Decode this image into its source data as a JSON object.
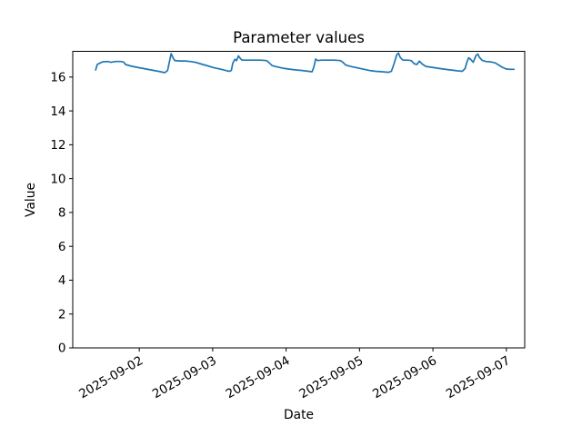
{
  "chart_data": {
    "type": "line",
    "title": "Parameter values",
    "xlabel": "Date",
    "ylabel": "Value",
    "grid": false,
    "legend": null,
    "line_color": "#1f77b4",
    "line_width": 1.7,
    "spine_color": "#000000",
    "text_color": "#000000",
    "background": "#ffffff",
    "xlim": [
      "2025-09-01T02:15",
      "2025-09-07T06:00"
    ],
    "ylim": [
      0,
      17.52
    ],
    "yticks": [
      0,
      2,
      4,
      6,
      8,
      10,
      12,
      14,
      16
    ],
    "xticks": [
      "2025-09-02",
      "2025-09-03",
      "2025-09-04",
      "2025-09-05",
      "2025-09-06",
      "2025-09-07"
    ],
    "xtick_rotation_deg": 30,
    "series": [
      {
        "name": "Parameter values",
        "x": [
          "2025-09-01T09:45",
          "2025-09-01T10:15",
          "2025-09-01T11:15",
          "2025-09-01T12:05",
          "2025-09-01T13:35",
          "2025-09-01T14:45",
          "2025-09-01T16:15",
          "2025-09-01T18:00",
          "2025-09-01T19:00",
          "2025-09-01T19:30",
          "2025-09-01T21:00",
          "2025-09-01T23:05",
          "2025-09-02T01:30",
          "2025-09-02T03:50",
          "2025-09-02T06:15",
          "2025-09-02T08:20",
          "2025-09-02T09:15",
          "2025-09-02T09:50",
          "2025-09-02T10:25",
          "2025-09-02T11:00",
          "2025-09-02T11:35",
          "2025-09-02T13:05",
          "2025-09-02T14:55",
          "2025-09-02T16:40",
          "2025-09-02T18:25",
          "2025-09-02T20:15",
          "2025-09-02T22:20",
          "2025-09-03T00:25",
          "2025-09-03T02:30",
          "2025-09-03T04:15",
          "2025-09-03T05:25",
          "2025-09-03T06:05",
          "2025-09-03T06:35",
          "2025-09-03T07:15",
          "2025-09-03T07:50",
          "2025-09-03T08:25",
          "2025-09-03T09:00",
          "2025-09-03T09:35",
          "2025-09-03T11:25",
          "2025-09-03T13:30",
          "2025-09-03T15:35",
          "2025-09-03T17:40",
          "2025-09-03T18:30",
          "2025-09-03T19:25",
          "2025-09-03T20:55",
          "2025-09-03T23:00",
          "2025-09-04T01:05",
          "2025-09-04T03:10",
          "2025-09-04T05:15",
          "2025-09-04T07:20",
          "2025-09-04T08:30",
          "2025-09-04T09:05",
          "2025-09-04T09:40",
          "2025-09-04T10:20",
          "2025-09-04T11:30",
          "2025-09-04T13:35",
          "2025-09-04T15:40",
          "2025-09-04T17:45",
          "2025-09-04T18:35",
          "2025-09-04T19:30",
          "2025-09-04T21:00",
          "2025-09-04T23:05",
          "2025-09-05T01:10",
          "2025-09-05T03:15",
          "2025-09-05T05:20",
          "2025-09-05T07:25",
          "2025-09-05T09:30",
          "2025-09-05T10:25",
          "2025-09-05T11:15",
          "2025-09-05T12:10",
          "2025-09-05T12:45",
          "2025-09-05T13:20",
          "2025-09-05T14:15",
          "2025-09-05T15:45",
          "2025-09-05T16:55",
          "2025-09-05T17:50",
          "2025-09-05T18:45",
          "2025-09-05T19:35",
          "2025-09-05T20:30",
          "2025-09-05T21:40",
          "2025-09-05T23:30",
          "2025-09-06T01:35",
          "2025-09-06T03:40",
          "2025-09-06T05:45",
          "2025-09-06T07:50",
          "2025-09-06T09:35",
          "2025-09-06T10:30",
          "2025-09-06T11:05",
          "2025-09-06T11:40",
          "2025-09-06T12:15",
          "2025-09-06T13:10",
          "2025-09-06T14:05",
          "2025-09-06T14:40",
          "2025-09-06T15:15",
          "2025-09-06T16:10",
          "2025-09-06T17:20",
          "2025-09-06T18:50",
          "2025-09-06T20:20",
          "2025-09-06T21:30",
          "2025-09-06T22:40",
          "2025-09-06T23:55",
          "2025-09-07T01:05",
          "2025-09-07T02:30"
        ],
        "y": [
          16.42,
          16.74,
          16.84,
          16.9,
          16.92,
          16.87,
          16.92,
          16.92,
          16.87,
          16.74,
          16.66,
          16.58,
          16.5,
          16.42,
          16.34,
          16.26,
          16.39,
          16.87,
          17.38,
          17.15,
          16.98,
          16.95,
          16.95,
          16.92,
          16.87,
          16.77,
          16.66,
          16.55,
          16.47,
          16.39,
          16.34,
          16.39,
          16.82,
          17.05,
          16.97,
          17.25,
          17.1,
          17.0,
          17.0,
          17.0,
          17.0,
          16.97,
          16.84,
          16.68,
          16.6,
          16.52,
          16.47,
          16.42,
          16.39,
          16.34,
          16.31,
          16.6,
          17.06,
          16.97,
          17.0,
          17.0,
          17.0,
          16.97,
          16.87,
          16.71,
          16.63,
          16.55,
          16.47,
          16.39,
          16.34,
          16.31,
          16.28,
          16.34,
          16.77,
          17.32,
          17.42,
          17.15,
          17.0,
          17.0,
          16.97,
          16.79,
          16.74,
          16.94,
          16.77,
          16.63,
          16.58,
          16.52,
          16.47,
          16.42,
          16.37,
          16.34,
          16.5,
          16.87,
          17.14,
          17.06,
          16.87,
          17.28,
          17.36,
          17.15,
          16.98,
          16.92,
          16.9,
          16.84,
          16.71,
          16.58,
          16.48,
          16.46,
          16.46
        ]
      }
    ]
  }
}
